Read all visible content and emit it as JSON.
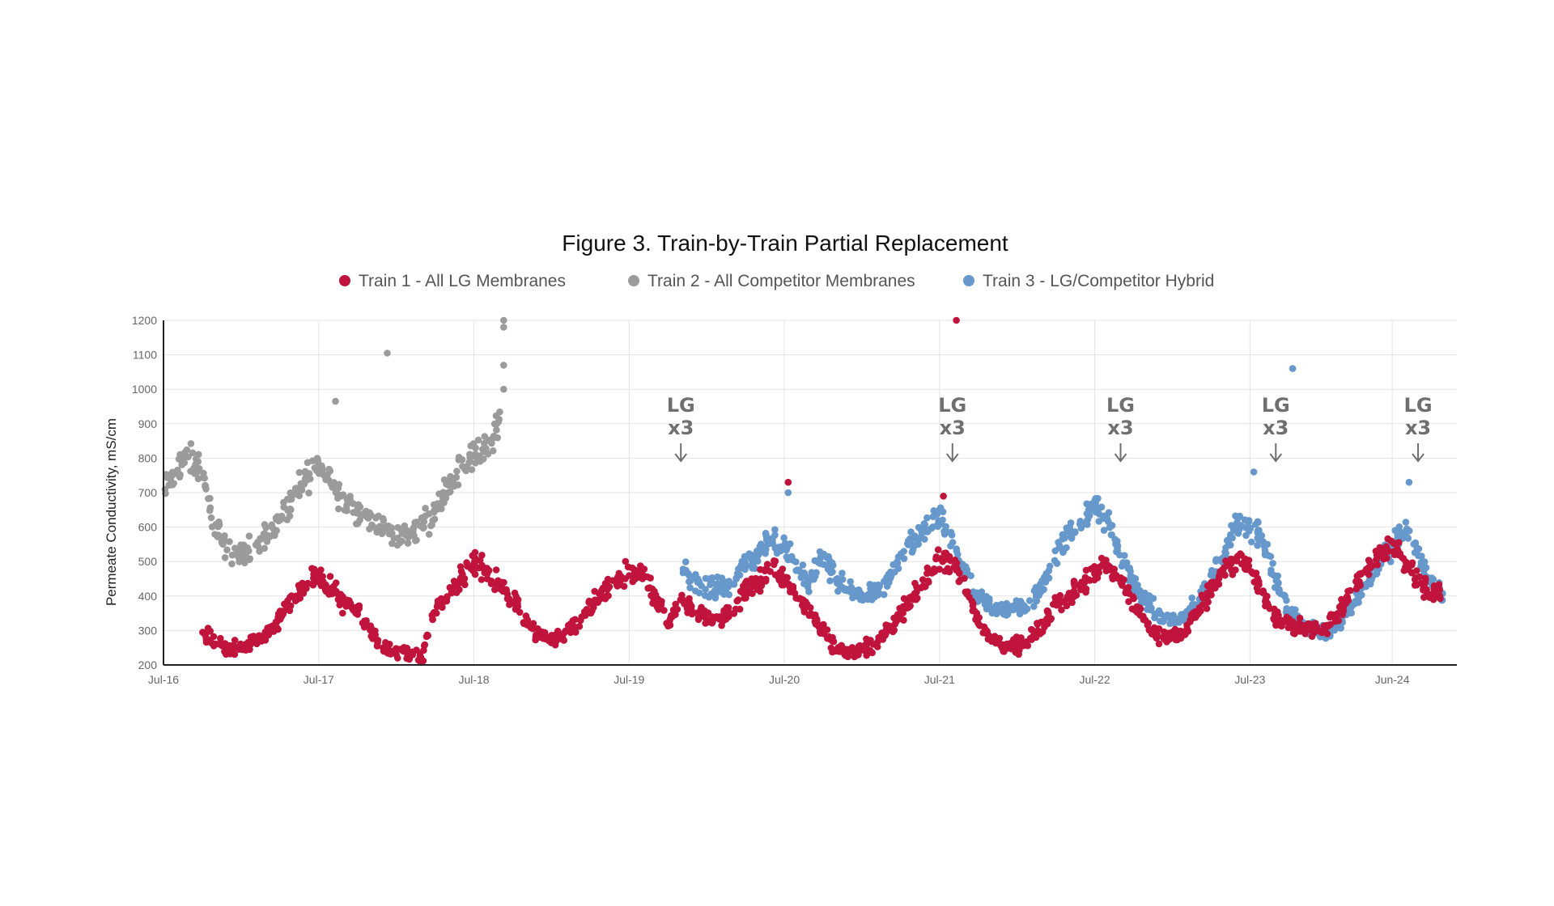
{
  "chart_data": {
    "type": "scatter",
    "title": "Figure 3. Train-by-Train Partial Replacement",
    "ylabel": "Permeate Conductivity, mS/cm",
    "xlabel": "",
    "ylim": [
      200,
      1200
    ],
    "yticks": [
      200,
      300,
      400,
      500,
      600,
      700,
      800,
      900,
      1000,
      1100,
      1200
    ],
    "xlim": [
      "2016-07",
      "2024-11"
    ],
    "xticks": [
      {
        "label": "Jul-16",
        "date": "2016-07"
      },
      {
        "label": "Jul-17",
        "date": "2017-07"
      },
      {
        "label": "Jul-18",
        "date": "2018-07"
      },
      {
        "label": "Jul-19",
        "date": "2019-07"
      },
      {
        "label": "Jul-20",
        "date": "2020-07"
      },
      {
        "label": "Jul-21",
        "date": "2021-07"
      },
      {
        "label": "Jul-22",
        "date": "2022-07"
      },
      {
        "label": "Jul-23",
        "date": "2023-07"
      },
      {
        "label": "Jun-24",
        "date": "2024-06"
      }
    ],
    "grid": true,
    "legend_position": "top-center",
    "series": [
      {
        "name": "Train 1 - All LG Membranes",
        "color": "#c0143c",
        "profile": [
          [
            "2016-10",
            300
          ],
          [
            "2016-11",
            265
          ],
          [
            "2016-12",
            245
          ],
          [
            "2017-01",
            250
          ],
          [
            "2017-02",
            270
          ],
          [
            "2017-03",
            290
          ],
          [
            "2017-04",
            340
          ],
          [
            "2017-05",
            390
          ],
          [
            "2017-06",
            430
          ],
          [
            "2017-07",
            460
          ],
          [
            "2017-08",
            420
          ],
          [
            "2017-09",
            380
          ],
          [
            "2017-10",
            360
          ],
          [
            "2017-11",
            300
          ],
          [
            "2017-12",
            255
          ],
          [
            "2018-01",
            240
          ],
          [
            "2018-02",
            230
          ],
          [
            "2018-03",
            225
          ],
          [
            "2018-04",
            355
          ],
          [
            "2018-05",
            400
          ],
          [
            "2018-06",
            450
          ],
          [
            "2018-07",
            500
          ],
          [
            "2018-08",
            470
          ],
          [
            "2018-09",
            430
          ],
          [
            "2018-10",
            390
          ],
          [
            "2018-11",
            320
          ],
          [
            "2018-12",
            285
          ],
          [
            "2019-01",
            280
          ],
          [
            "2019-02",
            290
          ],
          [
            "2019-03",
            320
          ],
          [
            "2019-04",
            370
          ],
          [
            "2019-05",
            410
          ],
          [
            "2019-06",
            450
          ],
          [
            "2019-07",
            480
          ],
          [
            "2019-08",
            460
          ],
          [
            "2019-09",
            400
          ],
          [
            "2019-10",
            320
          ],
          [
            "2019-11",
            400
          ],
          [
            "2019-12",
            360
          ],
          [
            "2020-01",
            340
          ],
          [
            "2020-02",
            330
          ],
          [
            "2020-03",
            360
          ],
          [
            "2020-04",
            420
          ],
          [
            "2020-05",
            440
          ],
          [
            "2020-06",
            480
          ],
          [
            "2020-07",
            450
          ],
          [
            "2020-08",
            400
          ],
          [
            "2020-09",
            350
          ],
          [
            "2020-10",
            290
          ],
          [
            "2020-11",
            250
          ],
          [
            "2020-12",
            235
          ],
          [
            "2021-01",
            240
          ],
          [
            "2021-02",
            260
          ],
          [
            "2021-03",
            300
          ],
          [
            "2021-04",
            350
          ],
          [
            "2021-05",
            400
          ],
          [
            "2021-06",
            450
          ],
          [
            "2021-07",
            500
          ],
          [
            "2021-08",
            500
          ],
          [
            "2021-09",
            420
          ],
          [
            "2021-10",
            330
          ],
          [
            "2021-11",
            270
          ],
          [
            "2021-12",
            255
          ],
          [
            "2022-01",
            255
          ],
          [
            "2022-02",
            275
          ],
          [
            "2022-03",
            320
          ],
          [
            "2022-04",
            380
          ],
          [
            "2022-05",
            400
          ],
          [
            "2022-06",
            430
          ],
          [
            "2022-07",
            470
          ],
          [
            "2022-08",
            490
          ],
          [
            "2022-09",
            440
          ],
          [
            "2022-10",
            380
          ],
          [
            "2022-11",
            320
          ],
          [
            "2022-12",
            285
          ],
          [
            "2023-01",
            280
          ],
          [
            "2023-02",
            300
          ],
          [
            "2023-03",
            360
          ],
          [
            "2023-04",
            420
          ],
          [
            "2023-05",
            480
          ],
          [
            "2023-06",
            510
          ],
          [
            "2023-07",
            480
          ],
          [
            "2023-08",
            400
          ],
          [
            "2023-09",
            340
          ],
          [
            "2023-10",
            315
          ],
          [
            "2023-11",
            305
          ],
          [
            "2023-12",
            305
          ],
          [
            "2024-01",
            310
          ],
          [
            "2024-02",
            360
          ],
          [
            "2024-03",
            420
          ],
          [
            "2024-04",
            470
          ],
          [
            "2024-05",
            520
          ],
          [
            "2024-06",
            550
          ],
          [
            "2024-07",
            500
          ],
          [
            "2024-08",
            450
          ],
          [
            "2024-09",
            410
          ],
          [
            "2024-10",
            400
          ]
        ],
        "outliers": [
          [
            "2021-08",
            1200
          ],
          [
            "2021-07",
            690
          ],
          [
            "2020-07",
            730
          ]
        ]
      },
      {
        "name": "Train 2 - All Competitor Membranes",
        "color": "#9b9b9b",
        "profile": [
          [
            "2016-07",
            700
          ],
          [
            "2016-08",
            760
          ],
          [
            "2016-09",
            820
          ],
          [
            "2016-10",
            740
          ],
          [
            "2016-11",
            600
          ],
          [
            "2016-12",
            530
          ],
          [
            "2017-01",
            520
          ],
          [
            "2017-02",
            550
          ],
          [
            "2017-03",
            580
          ],
          [
            "2017-04",
            620
          ],
          [
            "2017-05",
            680
          ],
          [
            "2017-06",
            740
          ],
          [
            "2017-07",
            780
          ],
          [
            "2017-08",
            730
          ],
          [
            "2017-09",
            680
          ],
          [
            "2017-10",
            650
          ],
          [
            "2017-11",
            620
          ],
          [
            "2017-12",
            590
          ],
          [
            "2018-01",
            580
          ],
          [
            "2018-02",
            580
          ],
          [
            "2018-03",
            600
          ],
          [
            "2018-04",
            650
          ],
          [
            "2018-05",
            720
          ],
          [
            "2018-06",
            790
          ],
          [
            "2018-07",
            800
          ],
          [
            "2018-08",
            830
          ],
          [
            "2018-09",
            900
          ]
        ],
        "outliers": [
          [
            "2017-12",
            1105
          ],
          [
            "2017-08",
            965
          ],
          [
            "2018-09",
            1200
          ],
          [
            "2018-09",
            1180
          ],
          [
            "2018-09",
            1070
          ],
          [
            "2018-09",
            1000
          ]
        ]
      },
      {
        "name": "Train 3 - LG/Competitor Hybrid",
        "color": "#6698cc",
        "profile": [
          [
            "2019-11",
            480
          ],
          [
            "2019-12",
            450
          ],
          [
            "2020-01",
            430
          ],
          [
            "2020-02",
            420
          ],
          [
            "2020-03",
            440
          ],
          [
            "2020-04",
            500
          ],
          [
            "2020-05",
            520
          ],
          [
            "2020-06",
            560
          ],
          [
            "2020-07",
            540
          ],
          [
            "2020-08",
            490
          ],
          [
            "2020-09",
            440
          ],
          [
            "2020-10",
            520
          ],
          [
            "2020-11",
            440
          ],
          [
            "2020-12",
            415
          ],
          [
            "2021-01",
            405
          ],
          [
            "2021-02",
            410
          ],
          [
            "2021-03",
            440
          ],
          [
            "2021-04",
            500
          ],
          [
            "2021-05",
            560
          ],
          [
            "2021-06",
            600
          ],
          [
            "2021-07",
            620
          ],
          [
            "2021-08",
            560
          ],
          [
            "2021-09",
            460
          ],
          [
            "2021-10",
            390
          ],
          [
            "2021-11",
            370
          ],
          [
            "2021-12",
            360
          ],
          [
            "2022-01",
            360
          ],
          [
            "2022-02",
            380
          ],
          [
            "2022-03",
            430
          ],
          [
            "2022-04",
            520
          ],
          [
            "2022-05",
            580
          ],
          [
            "2022-06",
            620
          ],
          [
            "2022-07",
            650
          ],
          [
            "2022-08",
            620
          ],
          [
            "2022-09",
            520
          ],
          [
            "2022-10",
            440
          ],
          [
            "2022-11",
            380
          ],
          [
            "2022-12",
            340
          ],
          [
            "2023-01",
            330
          ],
          [
            "2023-02",
            340
          ],
          [
            "2023-03",
            380
          ],
          [
            "2023-04",
            450
          ],
          [
            "2023-05",
            530
          ],
          [
            "2023-06",
            620
          ],
          [
            "2023-07",
            600
          ],
          [
            "2023-08",
            560
          ],
          [
            "2023-09",
            440
          ],
          [
            "2023-10",
            360
          ],
          [
            "2023-11",
            320
          ],
          [
            "2023-12",
            300
          ],
          [
            "2024-01",
            300
          ],
          [
            "2024-02",
            320
          ],
          [
            "2024-03",
            380
          ],
          [
            "2024-04",
            440
          ],
          [
            "2024-05",
            500
          ],
          [
            "2024-06",
            540
          ],
          [
            "2024-07",
            600
          ],
          [
            "2024-08",
            520
          ],
          [
            "2024-09",
            440
          ],
          [
            "2024-10",
            400
          ]
        ],
        "outliers": [
          [
            "2023-10",
            1060
          ],
          [
            "2020-07",
            700
          ],
          [
            "2023-07",
            760
          ],
          [
            "2024-07",
            730
          ]
        ]
      }
    ],
    "annotations": [
      {
        "date": "2019-11",
        "line1": "LG",
        "line2": "x3",
        "arrow": "↓"
      },
      {
        "date": "2021-08",
        "line1": "LG",
        "line2": "x3",
        "arrow": "↓"
      },
      {
        "date": "2022-09",
        "line1": "LG",
        "line2": "x3",
        "arrow": "↓"
      },
      {
        "date": "2023-09",
        "line1": "LG",
        "line2": "x3",
        "arrow": "↓"
      },
      {
        "date": "2024-08",
        "line1": "LG",
        "line2": "x3",
        "arrow": "↓"
      }
    ]
  }
}
